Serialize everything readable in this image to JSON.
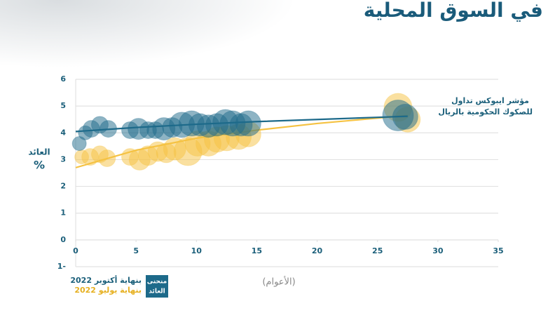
{
  "chart_data": {
    "type": "scatter",
    "title": "في السوق المحلية",
    "x_label": "(الأعوام)",
    "y_label": "العائد",
    "y_unit": "%",
    "annotation": [
      "مؤشر ايبوكس تداول",
      "للصكوك الحكومية بالريال"
    ],
    "legend_title": [
      "منحنى",
      "العائد"
    ],
    "xlim": [
      0,
      35
    ],
    "xticks": [
      0,
      5,
      10,
      15,
      20,
      25,
      30,
      35
    ],
    "ylim": [
      -1,
      6
    ],
    "yticks": [
      6,
      5,
      4,
      3,
      2,
      1,
      0,
      {
        "value": -1,
        "label": "1-"
      }
    ],
    "grid": true,
    "series": [
      {
        "name": "بنهاية يوليو 2022",
        "color": "#f5c242",
        "x": [
          0.5,
          1.2,
          2.0,
          2.6,
          4.5,
          5.3,
          6.0,
          6.8,
          7.5,
          8.2,
          9.3,
          10.1,
          11.0,
          11.7,
          12.5,
          13.5,
          14.3,
          26.7,
          27.5
        ],
        "values": [
          3.1,
          3.1,
          3.2,
          3.05,
          3.1,
          3.0,
          3.15,
          3.3,
          3.25,
          3.4,
          3.3,
          3.6,
          3.6,
          3.75,
          3.8,
          3.85,
          3.95,
          4.95,
          4.5
        ],
        "sizes": [
          10,
          12,
          12,
          12,
          12,
          15,
          14,
          14,
          14,
          16,
          20,
          18,
          18,
          18,
          18,
          18,
          18,
          20,
          18
        ],
        "fit_x": [
          0,
          5,
          10,
          15,
          20,
          25,
          27.5
        ],
        "fit_values": [
          2.7,
          3.35,
          3.8,
          4.1,
          4.35,
          4.55,
          4.65
        ]
      },
      {
        "name": "بنهاية أكتوبر 2022",
        "color": "#1d6a8a",
        "x": [
          0.3,
          0.8,
          1.3,
          2.0,
          2.7,
          4.5,
          5.2,
          6.0,
          6.6,
          7.3,
          8.0,
          8.8,
          9.6,
          10.3,
          11.0,
          11.7,
          12.4,
          13.0,
          13.7,
          14.3,
          26.7,
          27.3
        ],
        "values": [
          3.6,
          4.0,
          4.15,
          4.3,
          4.15,
          4.1,
          4.15,
          4.1,
          4.1,
          4.15,
          4.2,
          4.3,
          4.35,
          4.3,
          4.25,
          4.3,
          4.4,
          4.35,
          4.3,
          4.35,
          4.65,
          4.6
        ],
        "sizes": [
          10,
          10,
          12,
          12,
          12,
          12,
          15,
          12,
          12,
          16,
          14,
          18,
          18,
          16,
          16,
          16,
          18,
          18,
          16,
          18,
          22,
          18
        ],
        "fit_x": [
          0,
          5,
          10,
          15,
          20,
          25,
          27.5
        ],
        "fit_values": [
          4.05,
          4.2,
          4.32,
          4.42,
          4.5,
          4.58,
          4.62
        ]
      }
    ]
  }
}
